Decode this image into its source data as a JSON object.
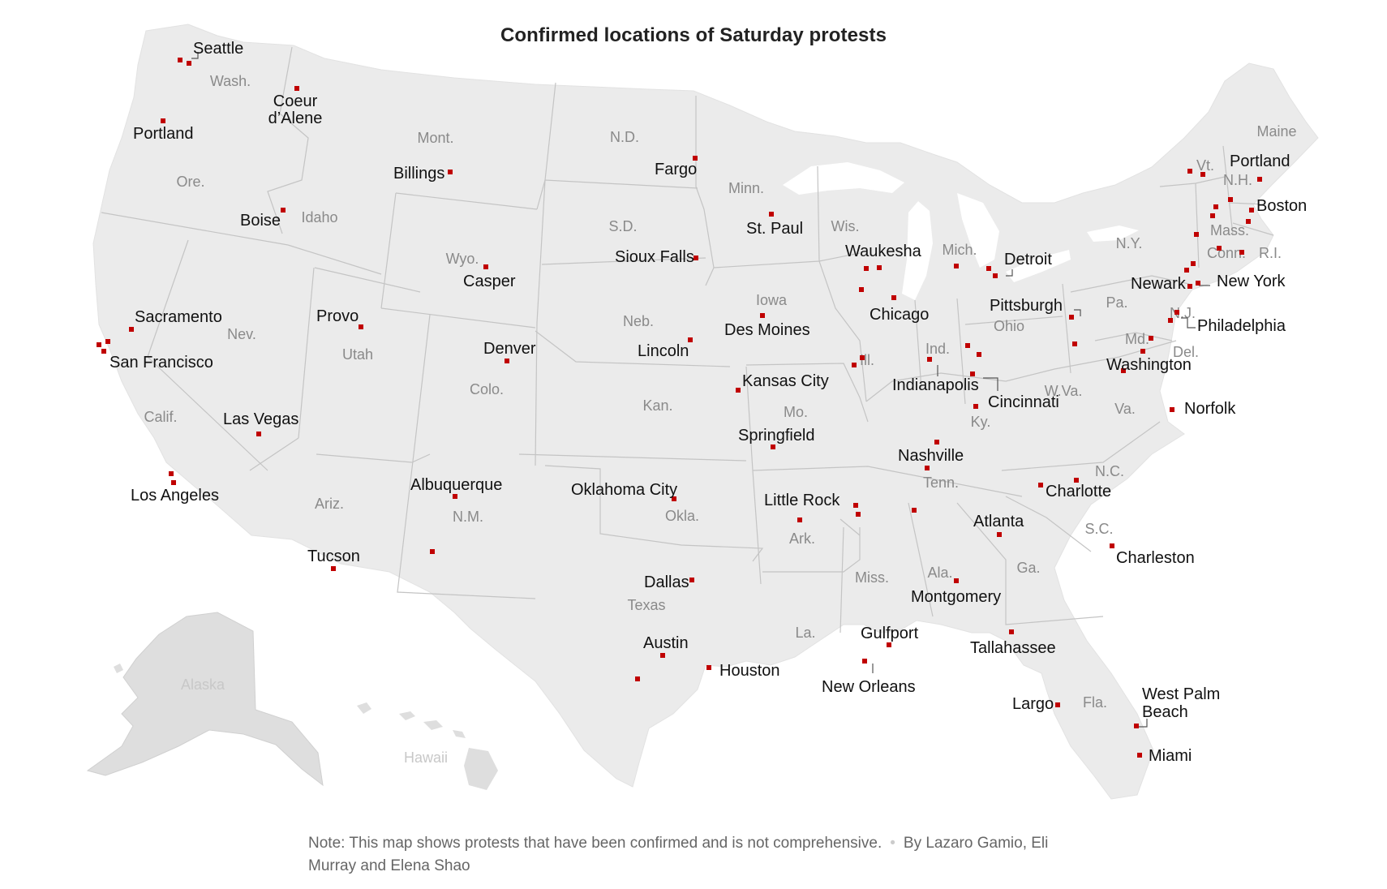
{
  "title": "Confirmed locations of Saturday protests",
  "note": {
    "text": "Note: This map shows protests that have been confirmed and is not comprehensive.",
    "byline": "By Lazaro Gamio, Eli Murray and Elena Shao"
  },
  "colors": {
    "land": "#ebebeb",
    "inset_land": "#dedede",
    "border": "#c4c4c4",
    "marker": "#c00000",
    "city_text": "#111111",
    "state_text": "#8a8a8a"
  },
  "states": {
    "wash": "Wash.",
    "ore": "Ore.",
    "calif": "Calif.",
    "idaho": "Idaho",
    "nev": "Nev.",
    "utah": "Utah",
    "ariz": "Ariz.",
    "mont": "Mont.",
    "wyo": "Wyo.",
    "colo": "Colo.",
    "nm": "N.M.",
    "nd": "N.D.",
    "sd": "S.D.",
    "neb": "Neb.",
    "kan": "Kan.",
    "okla": "Okla.",
    "texas": "Texas",
    "minn": "Minn.",
    "iowa": "Iowa",
    "mo": "Mo.",
    "ark": "Ark.",
    "la": "La.",
    "wis": "Wis.",
    "ill": "Ill.",
    "mich": "Mich.",
    "ind": "Ind.",
    "ohio": "Ohio",
    "ky": "Ky.",
    "tenn": "Tenn.",
    "miss": "Miss.",
    "ala": "Ala.",
    "ga": "Ga.",
    "fla": "Fla.",
    "sc": "S.C.",
    "nc": "N.C.",
    "va": "Va.",
    "wva": "W.Va.",
    "pa": "Pa.",
    "ny": "N.Y.",
    "md": "Md.",
    "del": "Del.",
    "nj": "N.J.",
    "conn": "Conn.",
    "ri": "R.I.",
    "mass": "Mass.",
    "vt": "Vt.",
    "nh": "N.H.",
    "maine": "Maine",
    "alaska": "Alaska",
    "hawaii": "Hawaii"
  },
  "cities": {
    "seattle": "Seattle",
    "portland_or": "Portland",
    "coeur": "Coeur",
    "dalene": "d’Alene",
    "boise": "Boise",
    "sacramento": "Sacramento",
    "san_francisco": "San Francisco",
    "los_angeles": "Los Angeles",
    "las_vegas": "Las Vegas",
    "provo": "Provo",
    "tucson": "Tucson",
    "billings": "Billings",
    "casper": "Casper",
    "denver": "Denver",
    "albuquerque": "Albuquerque",
    "fargo": "Fargo",
    "sioux_falls": "Sioux Falls",
    "lincoln": "Lincoln",
    "oklahoma_city": "Oklahoma City",
    "dallas": "Dallas",
    "austin": "Austin",
    "houston": "Houston",
    "st_paul": "St. Paul",
    "des_moines": "Des Moines",
    "kansas_city": "Kansas City",
    "springfield": "Springfield",
    "little_rock": "Little Rock",
    "waukesha": "Waukesha",
    "chicago": "Chicago",
    "detroit": "Detroit",
    "indianapolis": "Indianapolis",
    "cincinnati": "Cincinnati",
    "nashville": "Nashville",
    "new_orleans": "New Orleans",
    "gulfport": "Gulfport",
    "montgomery": "Montgomery",
    "atlanta": "Atlanta",
    "tallahassee": "Tallahassee",
    "largo": "Largo",
    "west": "West Palm",
    "beach": "Beach",
    "miami": "Miami",
    "charleston": "Charleston",
    "charlotte": "Charlotte",
    "norfolk": "Norfolk",
    "washington": "Washington",
    "pittsburgh": "Pittsburgh",
    "philadelphia": "Philadelphia",
    "newark": "Newark",
    "new_york": "New York",
    "boston": "Boston",
    "portland_me": "Portland"
  }
}
